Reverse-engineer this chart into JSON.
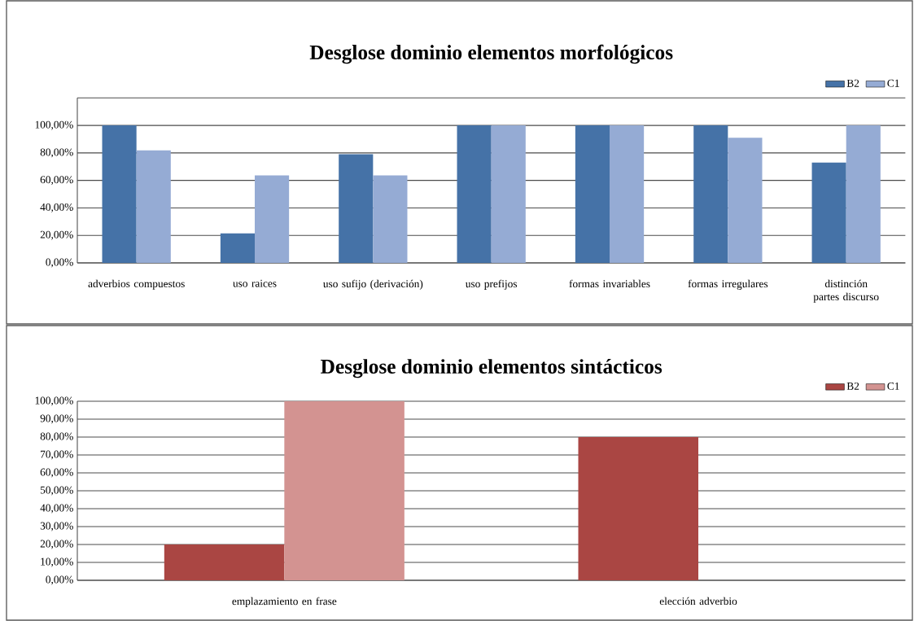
{
  "chart_data": [
    {
      "type": "bar",
      "title": "Desglose dominio elementos morfológicos",
      "categories": [
        "adverbios compuestos",
        "uso raices",
        "uso sufijo (derivación)",
        "uso prefijos",
        "formas invariables",
        "formas irregulares",
        "distinción partes discurso"
      ],
      "series": [
        {
          "name": "B2",
          "color": "#4572a7",
          "values": [
            100,
            21.5,
            79,
            100,
            100,
            100,
            73
          ]
        },
        {
          "name": "C1",
          "color": "#95abd4",
          "values": [
            81.8,
            63.6,
            63.6,
            100,
            100,
            91,
            100
          ]
        }
      ],
      "ylim": [
        0,
        120
      ],
      "yticks": [
        {
          "value": 0,
          "label": "0,00%"
        },
        {
          "value": 20,
          "label": "20,00%"
        },
        {
          "value": 40,
          "label": "40,00%"
        },
        {
          "value": 60,
          "label": "60,00%"
        },
        {
          "value": 80,
          "label": "80,00%"
        },
        {
          "value": 100,
          "label": "100,00%"
        },
        {
          "value": 120,
          "label": null
        }
      ],
      "grid": "y",
      "legend": "top right"
    },
    {
      "type": "bar",
      "title": "Desglose dominio elementos sintácticos",
      "categories": [
        "emplazamiento en frase",
        "elección adverbio"
      ],
      "series": [
        {
          "name": "B2",
          "color": "#aa4643",
          "values": [
            20,
            80
          ]
        },
        {
          "name": "C1",
          "color": "#d39391",
          "values": [
            100,
            0
          ]
        }
      ],
      "ylim": [
        0,
        100
      ],
      "yticks": [
        {
          "value": 0,
          "label": "0,00%"
        },
        {
          "value": 10,
          "label": "10,00%"
        },
        {
          "value": 20,
          "label": "20,00%"
        },
        {
          "value": 30,
          "label": "30,00%"
        },
        {
          "value": 40,
          "label": "40,00%"
        },
        {
          "value": 50,
          "label": "50,00%"
        },
        {
          "value": 60,
          "label": "60,00%"
        },
        {
          "value": 70,
          "label": "70,00%"
        },
        {
          "value": 80,
          "label": "80,00%"
        },
        {
          "value": 90,
          "label": "90,00%"
        },
        {
          "value": 100,
          "label": "100,00%"
        }
      ],
      "grid": "y",
      "legend": "top right"
    }
  ]
}
